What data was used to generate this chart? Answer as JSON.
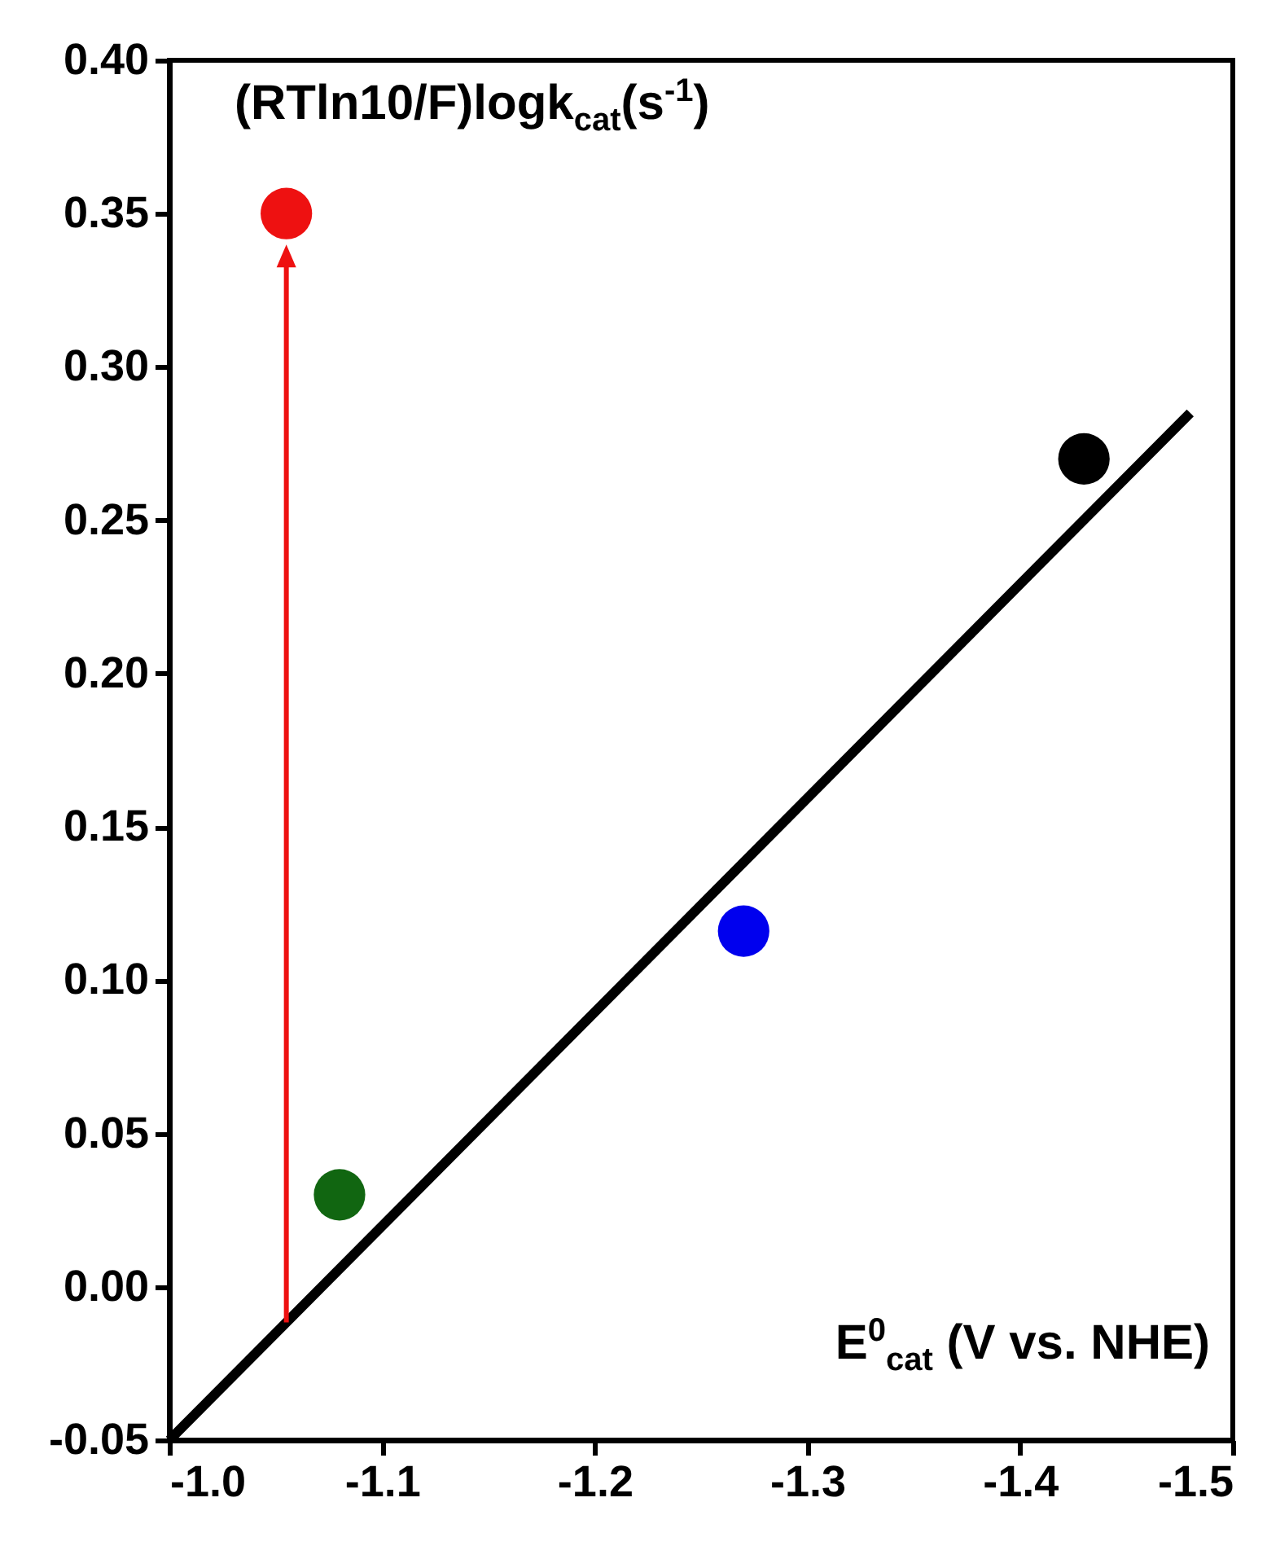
{
  "chart_data": {
    "type": "scatter",
    "xlabel": "E$^{0}$$_{cat}$ (V vs. NHE)",
    "ylabel": "(RTln10/F)logk$_{cat}$(s$^{-1}$)",
    "xlim": [
      -1.0,
      -1.5
    ],
    "ylim": [
      -0.05,
      0.4
    ],
    "xticks": [
      {
        "value": -1.0,
        "label": "-1.0"
      },
      {
        "value": -1.1,
        "label": "-1.1"
      },
      {
        "value": -1.2,
        "label": "-1.2"
      },
      {
        "value": -1.3,
        "label": "-1.3"
      },
      {
        "value": -1.4,
        "label": "-1.4"
      },
      {
        "value": -1.5,
        "label": "-1.5"
      }
    ],
    "yticks": [
      {
        "value": -0.05,
        "label": "-0.05"
      },
      {
        "value": 0,
        "label": "0.00"
      },
      {
        "value": 0.05,
        "label": "0.05"
      },
      {
        "value": 0.1,
        "label": "0.10"
      },
      {
        "value": 0.15,
        "label": "0.15"
      },
      {
        "value": 0.2,
        "label": "0.20"
      },
      {
        "value": 0.25,
        "label": "0.25"
      },
      {
        "value": 0.3,
        "label": "0.30"
      },
      {
        "value": 0.35,
        "label": "0.35"
      },
      {
        "value": 0.4,
        "label": "0.40"
      }
    ],
    "series": [
      {
        "type": "scatter",
        "marker": "circle",
        "x": [
          -1.055,
          -1.08,
          -1.27,
          -1.43
        ],
        "values": [
          0.35,
          0.03,
          0.116,
          0.27
        ],
        "colors": [
          "#ee1111",
          "#116611",
          "#0000ee",
          "#000000"
        ]
      },
      {
        "type": "line",
        "x": [
          -1.0,
          -1.48
        ],
        "values": [
          -0.05,
          0.285
        ],
        "color": "#000000"
      }
    ]
  }
}
